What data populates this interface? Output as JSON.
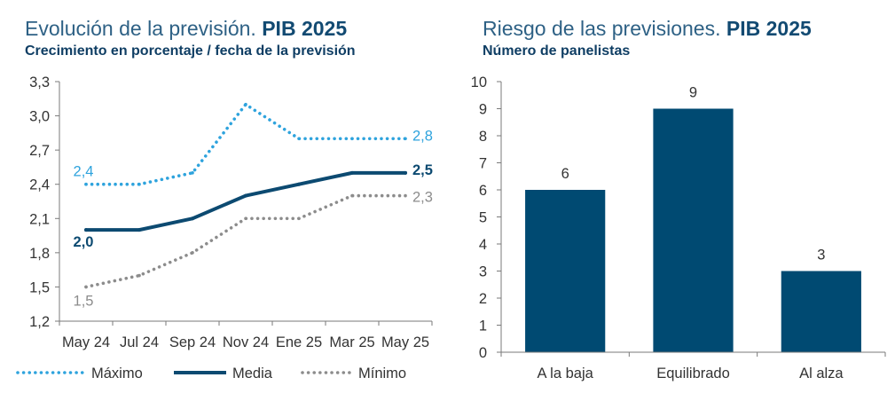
{
  "theme": {
    "title": "#2e6185",
    "title_emphasis": "#124a72",
    "subtitle": "#0f3e64",
    "axis_text": "#333333",
    "axis_line": "#7a7a7a"
  },
  "chart_data": [
    {
      "type": "line",
      "title": "Evolución de la previsión.",
      "title_emphasis": "PIB 2025",
      "subtitle": "Crecimiento en porcentaje / fecha de la previsión",
      "categories": [
        "May 24",
        "Jul 24",
        "Sep 24",
        "Nov 24",
        "Ene 25",
        "Mar 25",
        "May 25"
      ],
      "ylim": [
        1.2,
        3.3
      ],
      "yticks": [
        {
          "value": 1.2,
          "label": "1,2"
        },
        {
          "value": 1.5,
          "label": "1,5"
        },
        {
          "value": 1.8,
          "label": "1,8"
        },
        {
          "value": 2.1,
          "label": "2,1"
        },
        {
          "value": 2.4,
          "label": "2,4"
        },
        {
          "value": 2.7,
          "label": "2,7"
        },
        {
          "value": 3.0,
          "label": "3,0"
        },
        {
          "value": 3.3,
          "label": "3,3"
        }
      ],
      "grid": false,
      "legend": "bottom",
      "series": [
        {
          "name": "Máximo",
          "values": [
            2.4,
            2.4,
            2.5,
            3.1,
            2.8,
            2.8,
            2.8
          ],
          "color": "#2ea3dd",
          "line_style": "dotted",
          "start_label": "2,4",
          "end_label": "2,8"
        },
        {
          "name": "Media",
          "values": [
            2.0,
            2.0,
            2.1,
            2.3,
            2.4,
            2.5,
            2.5
          ],
          "color": "#0c4a71",
          "line_style": "solid",
          "start_label": "2,0",
          "end_label": "2,5"
        },
        {
          "name": "Mínimo",
          "values": [
            1.5,
            1.6,
            1.8,
            2.1,
            2.1,
            2.3,
            2.3
          ],
          "color": "#8c8c8c",
          "line_style": "dotted",
          "start_label": "1,5",
          "end_label": "2,3"
        }
      ]
    },
    {
      "type": "bar",
      "title": "Riesgo de las previsiones.",
      "title_emphasis": "PIB 2025",
      "subtitle": "Número de panelistas",
      "categories": [
        "A la baja",
        "Equilibrado",
        "Al alza"
      ],
      "values": [
        6,
        9,
        3
      ],
      "data_labels": [
        "6",
        "9",
        "3"
      ],
      "ylim": [
        0,
        10
      ],
      "yticks": [
        {
          "value": 0,
          "label": "0"
        },
        {
          "value": 1,
          "label": "1"
        },
        {
          "value": 2,
          "label": "2"
        },
        {
          "value": 3,
          "label": "3"
        },
        {
          "value": 4,
          "label": "4"
        },
        {
          "value": 5,
          "label": "5"
        },
        {
          "value": 6,
          "label": "6"
        },
        {
          "value": 7,
          "label": "7"
        },
        {
          "value": 8,
          "label": "8"
        },
        {
          "value": 9,
          "label": "9"
        },
        {
          "value": 10,
          "label": "10"
        }
      ],
      "grid": false,
      "color": "#004a72"
    }
  ]
}
